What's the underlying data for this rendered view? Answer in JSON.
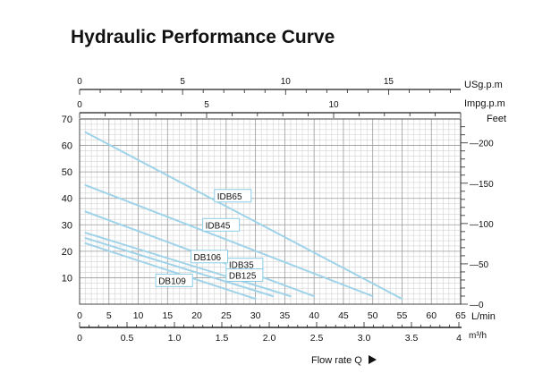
{
  "page": {
    "title": "Hydraulic Performance Curve"
  },
  "chart_data": {
    "type": "line",
    "title": "Hydraulic Performance Curve",
    "xlabel": "Flow rate Q",
    "ylabel": "",
    "xlim": [
      0,
      65
    ],
    "ylim": [
      0,
      70
    ],
    "grid": true,
    "line_color": "#9fd3ea",
    "axes": {
      "usgpm": {
        "label": "USg.p.m",
        "ticks": [
          0,
          5,
          10,
          15
        ],
        "max": 18.5
      },
      "impgpm": {
        "label": "Impg.p.m",
        "ticks": [
          0,
          5,
          10
        ],
        "max": 15
      },
      "left": {
        "ticks": [
          10,
          20,
          30,
          40,
          50,
          60,
          70
        ]
      },
      "feet": {
        "label": "Feet",
        "ticks": [
          0,
          50,
          100,
          150,
          200
        ]
      },
      "lmin": {
        "label": "L/min",
        "ticks": [
          0,
          5,
          10,
          15,
          20,
          25,
          30,
          35,
          40,
          45,
          50,
          55,
          60,
          65
        ]
      },
      "m3h": {
        "label": "m³/h",
        "ticks": [
          "0",
          "0.5",
          "1.0",
          "1.5",
          "2.0",
          "2.5",
          "3.0",
          "3.5",
          "4"
        ],
        "max": 4
      }
    },
    "series": [
      {
        "name": "IDB65",
        "x": [
          1,
          55
        ],
        "y": [
          65,
          2
        ],
        "label_at": [
          23,
          41
        ]
      },
      {
        "name": "IDB45",
        "x": [
          1,
          50
        ],
        "y": [
          45,
          3
        ],
        "label_at": [
          21,
          30
        ]
      },
      {
        "name": "IDB35",
        "x": [
          1,
          40
        ],
        "y": [
          35,
          3
        ],
        "label_at": [
          25,
          15
        ]
      },
      {
        "name": "DB106",
        "x": [
          1,
          36
        ],
        "y": [
          27,
          3
        ],
        "label_at": [
          19,
          18
        ]
      },
      {
        "name": "DB125",
        "x": [
          1,
          33
        ],
        "y": [
          25,
          3
        ],
        "label_at": [
          25,
          11
        ]
      },
      {
        "name": "DB109",
        "x": [
          1,
          30
        ],
        "y": [
          23,
          2
        ],
        "label_at": [
          13,
          9
        ]
      }
    ]
  }
}
